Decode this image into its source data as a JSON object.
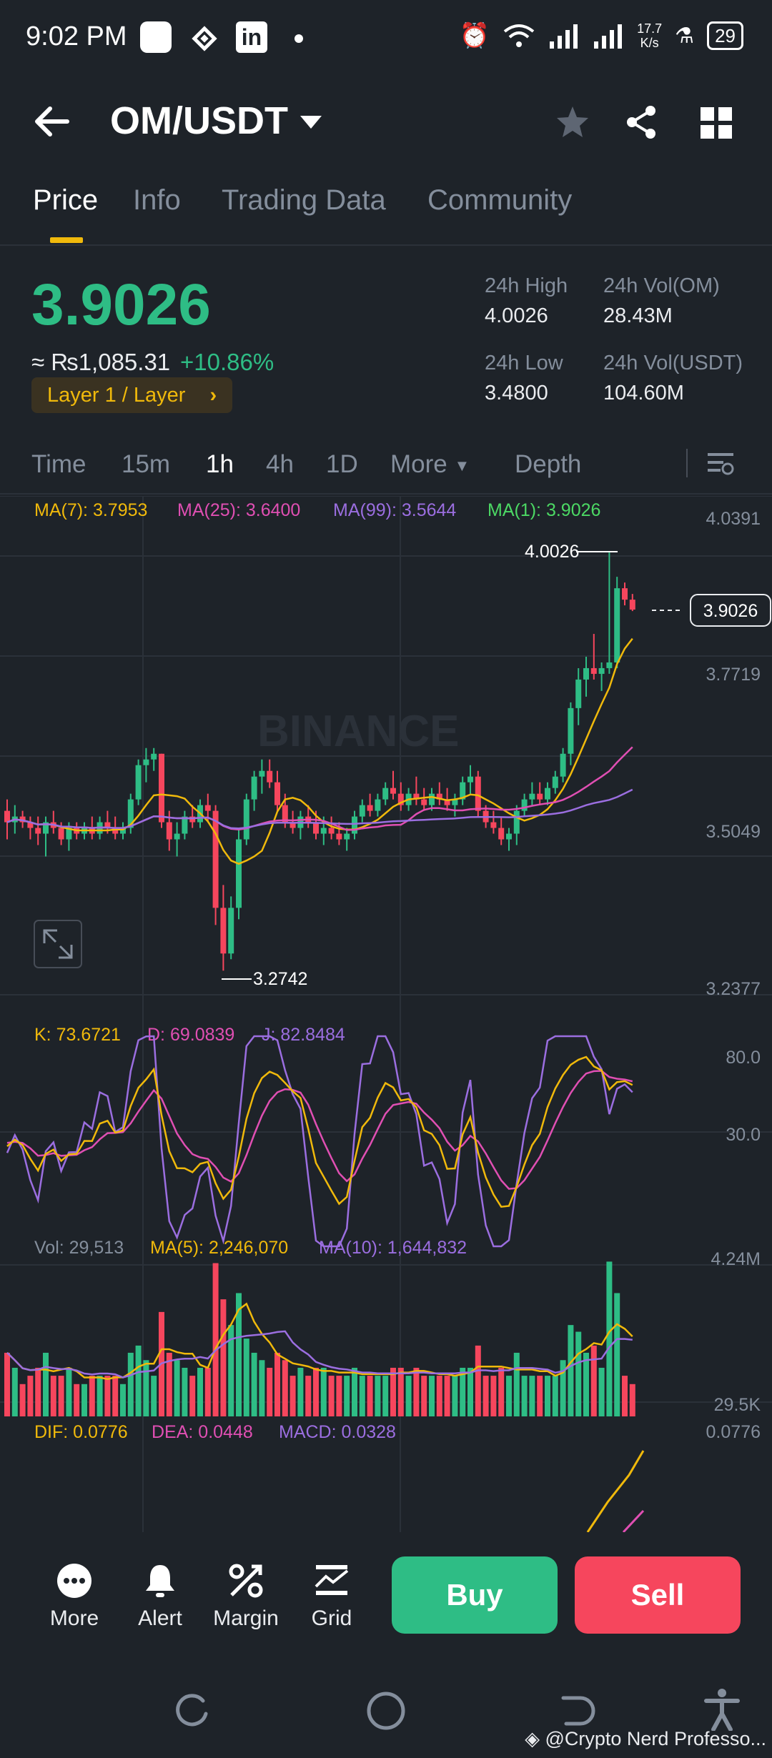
{
  "status_bar": {
    "time": "9:02 PM",
    "net_speed_value": "17.7",
    "net_speed_unit": "K/s",
    "battery": "29"
  },
  "header": {
    "pair": "OM/USDT"
  },
  "tabs": [
    {
      "label": "Price",
      "active": true
    },
    {
      "label": "Info",
      "active": false
    },
    {
      "label": "Trading Data",
      "active": false
    },
    {
      "label": "Community",
      "active": false
    }
  ],
  "price": {
    "last": "3.9026",
    "inr": "≈ ₨1,085.31",
    "change": "+10.86%",
    "sector": "Layer 1 / Layer",
    "stats": {
      "high_label": "24h High",
      "high_value": "4.0026",
      "vol_base_label": "24h Vol(OM)",
      "vol_base_value": "28.43M",
      "low_label": "24h Low",
      "low_value": "3.4800",
      "vol_quote_label": "24h Vol(USDT)",
      "vol_quote_value": "104.60M"
    }
  },
  "intervals": [
    {
      "label": "Time",
      "active": false
    },
    {
      "label": "15m",
      "active": false
    },
    {
      "label": "1h",
      "active": true
    },
    {
      "label": "4h",
      "active": false
    },
    {
      "label": "1D",
      "active": false
    },
    {
      "label": "More",
      "active": false
    },
    {
      "label": "Depth",
      "active": false
    }
  ],
  "chart_data": {
    "type": "candlestick",
    "watermark": "BINANCE",
    "ma_legend": {
      "ma7": "MA(7): 3.7953",
      "ma25": "MA(25): 3.6400",
      "ma99": "MA(99): 3.5644",
      "ma1": "MA(1): 3.9026"
    },
    "price_axis": [
      "4.0391",
      "3.7719",
      "3.5049",
      "3.2377"
    ],
    "price_range": [
      3.2377,
      4.0391
    ],
    "high_marker": "4.0026",
    "low_marker": "3.2742",
    "current_price_tag": "3.9026",
    "candles": [
      [
        3.55,
        3.57,
        3.5,
        3.53
      ],
      [
        3.53,
        3.56,
        3.51,
        3.54
      ],
      [
        3.54,
        3.55,
        3.52,
        3.53
      ],
      [
        3.53,
        3.54,
        3.5,
        3.52
      ],
      [
        3.52,
        3.54,
        3.49,
        3.51
      ],
      [
        3.51,
        3.54,
        3.47,
        3.53
      ],
      [
        3.53,
        3.55,
        3.51,
        3.52
      ],
      [
        3.52,
        3.53,
        3.49,
        3.5
      ],
      [
        3.5,
        3.53,
        3.48,
        3.52
      ],
      [
        3.52,
        3.53,
        3.5,
        3.51
      ],
      [
        3.51,
        3.53,
        3.5,
        3.52
      ],
      [
        3.52,
        3.54,
        3.5,
        3.51
      ],
      [
        3.51,
        3.54,
        3.5,
        3.53
      ],
      [
        3.53,
        3.55,
        3.51,
        3.52
      ],
      [
        3.52,
        3.54,
        3.5,
        3.51
      ],
      [
        3.51,
        3.53,
        3.5,
        3.52
      ],
      [
        3.52,
        3.58,
        3.51,
        3.57
      ],
      [
        3.57,
        3.64,
        3.56,
        3.63
      ],
      [
        3.63,
        3.66,
        3.6,
        3.64
      ],
      [
        3.64,
        3.66,
        3.62,
        3.65
      ],
      [
        3.65,
        3.65,
        3.52,
        3.53
      ],
      [
        3.53,
        3.55,
        3.48,
        3.5
      ],
      [
        3.5,
        3.53,
        3.47,
        3.51
      ],
      [
        3.51,
        3.55,
        3.5,
        3.54
      ],
      [
        3.54,
        3.56,
        3.52,
        3.53
      ],
      [
        3.53,
        3.57,
        3.52,
        3.56
      ],
      [
        3.56,
        3.58,
        3.53,
        3.55
      ],
      [
        3.55,
        3.56,
        3.35,
        3.38
      ],
      [
        3.38,
        3.42,
        3.27,
        3.3
      ],
      [
        3.3,
        3.4,
        3.29,
        3.38
      ],
      [
        3.38,
        3.52,
        3.36,
        3.5
      ],
      [
        3.5,
        3.58,
        3.49,
        3.57
      ],
      [
        3.57,
        3.62,
        3.55,
        3.61
      ],
      [
        3.61,
        3.64,
        3.58,
        3.62
      ],
      [
        3.62,
        3.64,
        3.59,
        3.6
      ],
      [
        3.6,
        3.62,
        3.55,
        3.56
      ],
      [
        3.56,
        3.58,
        3.52,
        3.53
      ],
      [
        3.53,
        3.55,
        3.51,
        3.52
      ],
      [
        3.52,
        3.55,
        3.5,
        3.54
      ],
      [
        3.54,
        3.56,
        3.52,
        3.53
      ],
      [
        3.53,
        3.55,
        3.5,
        3.51
      ],
      [
        3.51,
        3.54,
        3.49,
        3.52
      ],
      [
        3.52,
        3.54,
        3.5,
        3.51
      ],
      [
        3.51,
        3.53,
        3.49,
        3.5
      ],
      [
        3.5,
        3.52,
        3.48,
        3.51
      ],
      [
        3.51,
        3.55,
        3.5,
        3.54
      ],
      [
        3.54,
        3.57,
        3.53,
        3.56
      ],
      [
        3.56,
        3.58,
        3.54,
        3.55
      ],
      [
        3.55,
        3.58,
        3.54,
        3.57
      ],
      [
        3.57,
        3.6,
        3.56,
        3.59
      ],
      [
        3.59,
        3.62,
        3.57,
        3.58
      ],
      [
        3.58,
        3.6,
        3.55,
        3.56
      ],
      [
        3.56,
        3.59,
        3.55,
        3.58
      ],
      [
        3.58,
        3.61,
        3.56,
        3.57
      ],
      [
        3.57,
        3.59,
        3.55,
        3.56
      ],
      [
        3.56,
        3.59,
        3.55,
        3.58
      ],
      [
        3.58,
        3.6,
        3.56,
        3.57
      ],
      [
        3.57,
        3.59,
        3.55,
        3.56
      ],
      [
        3.56,
        3.58,
        3.54,
        3.57
      ],
      [
        3.57,
        3.61,
        3.56,
        3.6
      ],
      [
        3.6,
        3.63,
        3.58,
        3.61
      ],
      [
        3.61,
        3.62,
        3.54,
        3.55
      ],
      [
        3.55,
        3.56,
        3.52,
        3.53
      ],
      [
        3.53,
        3.55,
        3.51,
        3.52
      ],
      [
        3.52,
        3.54,
        3.49,
        3.5
      ],
      [
        3.5,
        3.52,
        3.48,
        3.51
      ],
      [
        3.51,
        3.56,
        3.49,
        3.55
      ],
      [
        3.55,
        3.58,
        3.54,
        3.57
      ],
      [
        3.57,
        3.6,
        3.56,
        3.58
      ],
      [
        3.58,
        3.6,
        3.56,
        3.57
      ],
      [
        3.57,
        3.6,
        3.56,
        3.59
      ],
      [
        3.59,
        3.62,
        3.58,
        3.61
      ],
      [
        3.61,
        3.66,
        3.6,
        3.65
      ],
      [
        3.65,
        3.74,
        3.63,
        3.73
      ],
      [
        3.73,
        3.8,
        3.7,
        3.78
      ],
      [
        3.78,
        3.82,
        3.75,
        3.8
      ],
      [
        3.8,
        3.86,
        3.78,
        3.79
      ],
      [
        3.79,
        3.81,
        3.76,
        3.8
      ],
      [
        3.8,
        4.0026,
        3.79,
        3.81
      ],
      [
        3.81,
        3.96,
        3.8,
        3.94
      ],
      [
        3.94,
        3.95,
        3.91,
        3.92
      ],
      [
        3.92,
        3.93,
        3.9,
        3.9026
      ]
    ],
    "kdj_legend": {
      "k": "K: 73.6721",
      "d": "D: 69.0839",
      "j": "J: 82.8484"
    },
    "kdj_axis": [
      "80.0",
      "30.0"
    ],
    "vol_legend": {
      "vol": "Vol: 29,513",
      "ma5": "MA(5): 2,246,070",
      "ma10": "MA(10): 1,644,832"
    },
    "vol_axis": [
      "4.24M",
      "29.5K"
    ],
    "macd_legend": {
      "dif": "DIF: 0.0776",
      "dea": "DEA: 0.0448",
      "macd": "MACD: 0.0328"
    },
    "macd_axis": [
      "0.0776"
    ],
    "colors": {
      "up": "#2ebd85",
      "down": "#f6465d",
      "ma7": "#f0b90b",
      "ma25": "#e04fb3",
      "ma99": "#9b6ee0",
      "ma1": "#4cd964"
    }
  },
  "actions": {
    "more": "More",
    "alert": "Alert",
    "margin": "Margin",
    "grid": "Grid",
    "buy": "Buy",
    "sell": "Sell"
  },
  "watermark": "@Crypto Nerd Professo..."
}
